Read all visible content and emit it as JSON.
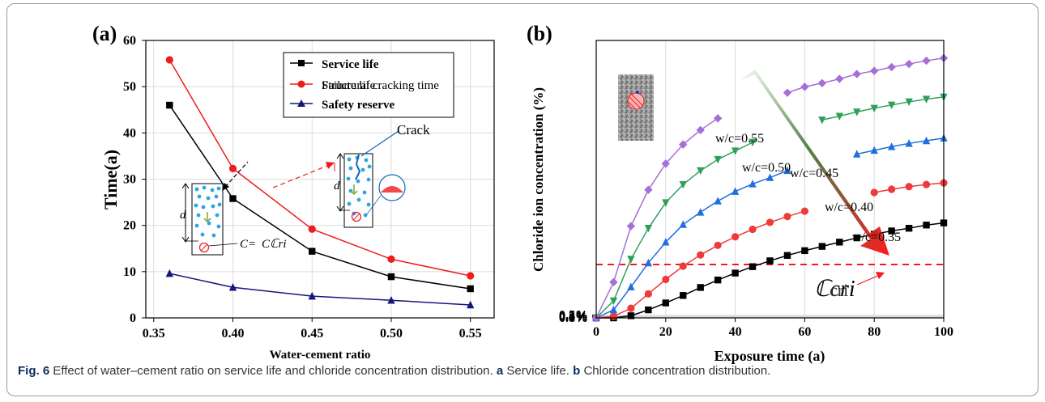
{
  "caption": {
    "fig_label": "Fig. 6",
    "text_1": "Effect of water–cement ratio on service life and chloride concentration distribution.",
    "a_label": "a",
    "text_2": "Service life.",
    "b_label": "b",
    "text_3": "Chloride concentration distribution."
  },
  "chart_data": [
    {
      "panel_label": "(a)",
      "type": "line",
      "xlabel": "Water-cement ratio",
      "ylabel": "Time(a)",
      "x": [
        0.36,
        0.4,
        0.45,
        0.5,
        0.55
      ],
      "xticks": [
        "0.35",
        "0.40",
        "0.45",
        "0.50",
        "0.55"
      ],
      "yticks": [
        "0",
        "10",
        "20",
        "30",
        "40",
        "50",
        "60"
      ],
      "xlim": [
        0.345,
        0.565
      ],
      "ylim": [
        0,
        60
      ],
      "legend_position": "top-right",
      "series": [
        {
          "name": "Service life",
          "values": [
            46,
            25.8,
            14.4,
            8.9,
            6.3
          ],
          "color": "#000000",
          "marker": "square"
        },
        {
          "name": "Failure life",
          "values": [
            55.8,
            32.3,
            19.2,
            12.7,
            9.1
          ],
          "color": "#ee1c1c",
          "marker": "circle"
        },
        {
          "name": "Safety reserve",
          "values": [
            9.6,
            6.6,
            4.7,
            3.8,
            2.8
          ],
          "color": "#16167c",
          "marker": "triangle"
        }
      ],
      "legend_overlap_text": "Structural cracking time",
      "annotations": {
        "d": "d",
        "c_eq": "C=",
        "c_cri": "Cℂri",
        "crack": "Crack"
      }
    },
    {
      "panel_label": "(b)",
      "type": "line",
      "xlabel": "Exposure time (a)",
      "ylabel": "Chloride ion concentration (%)",
      "xticks": [
        "0",
        "20",
        "40",
        "60",
        "80",
        "100"
      ],
      "yticks": [
        "0.0%",
        "0.1%",
        "0.2%",
        "0.3%",
        "0.4%",
        "0.5%"
      ],
      "xlim": [
        0,
        100
      ],
      "ylim": [
        0,
        0.52
      ],
      "threshold": {
        "value": 0.1,
        "color": "#ee1c1c",
        "label": "ℂcri",
        "label_overlap": "cri"
      },
      "series": [
        {
          "name": "w/c=0.35",
          "color": "#000000",
          "marker": "square",
          "x": [
            0,
            5,
            10,
            15,
            20,
            25,
            30,
            35,
            40,
            45,
            50,
            55,
            60,
            65,
            70,
            75,
            80,
            85,
            90,
            95,
            100
          ],
          "values": [
            0,
            0,
            0.004,
            0.015,
            0.028,
            0.042,
            0.057,
            0.071,
            0.084,
            0.096,
            0.107,
            0.117,
            0.126,
            0.134,
            0.142,
            0.15,
            0.157,
            0.163,
            0.168,
            0.174,
            0.178
          ]
        },
        {
          "name": "w/c=0.40",
          "color": "#ee3a3a",
          "marker": "circle",
          "x": [
            0,
            5,
            10,
            15,
            20,
            25,
            30,
            35,
            40,
            45,
            50,
            55,
            60,
            80,
            85,
            90,
            95,
            100
          ],
          "values": [
            0,
            0.003,
            0.018,
            0.045,
            0.072,
            0.097,
            0.118,
            0.136,
            0.152,
            0.166,
            0.179,
            0.19,
            0.2,
            0.235,
            0.241,
            0.246,
            0.25,
            0.253
          ]
        },
        {
          "name": "w/c=0.45",
          "color": "#1f6fe0",
          "marker": "triangle",
          "x": [
            0,
            5,
            10,
            15,
            20,
            25,
            30,
            35,
            40,
            45,
            50,
            55,
            75,
            80,
            85,
            90,
            95,
            100
          ],
          "values": [
            0,
            0.015,
            0.058,
            0.103,
            0.142,
            0.175,
            0.198,
            0.219,
            0.237,
            0.251,
            0.263,
            0.276,
            0.307,
            0.314,
            0.321,
            0.327,
            0.332,
            0.337
          ]
        },
        {
          "name": "w/c=0.50",
          "color": "#2fa05a",
          "marker": "triangle-down",
          "x": [
            0,
            5,
            10,
            15,
            20,
            25,
            30,
            35,
            40,
            45,
            65,
            70,
            75,
            80,
            85,
            90,
            95,
            100
          ],
          "values": [
            0,
            0.032,
            0.11,
            0.168,
            0.216,
            0.25,
            0.276,
            0.297,
            0.313,
            0.329,
            0.371,
            0.378,
            0.386,
            0.393,
            0.399,
            0.405,
            0.41,
            0.414
          ]
        },
        {
          "name": "w/c=0.55",
          "color": "#a470d8",
          "marker": "diamond",
          "x": [
            0,
            5,
            10,
            15,
            20,
            25,
            30,
            35,
            55,
            60,
            65,
            70,
            75,
            80,
            85,
            90,
            95,
            100
          ],
          "values": [
            0,
            0.067,
            0.172,
            0.24,
            0.289,
            0.325,
            0.352,
            0.374,
            0.422,
            0.433,
            0.44,
            0.448,
            0.457,
            0.463,
            0.47,
            0.476,
            0.482,
            0.487
          ]
        }
      ]
    }
  ]
}
